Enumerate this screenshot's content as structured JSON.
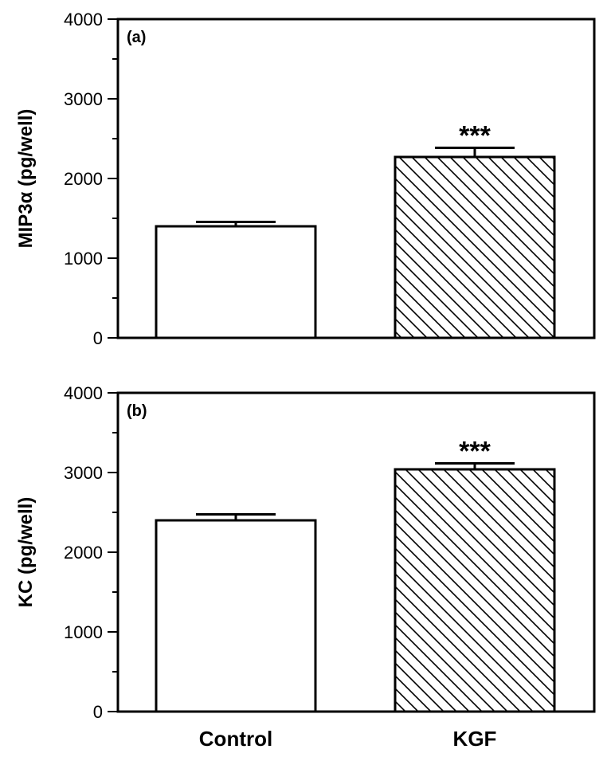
{
  "chart_data": [
    {
      "type": "bar",
      "panel_label": "(a)",
      "ylabel": "MIP3α (pg/well)",
      "categories": [
        "Control",
        "KGF"
      ],
      "values": [
        1400,
        2270
      ],
      "errors": [
        55,
        115
      ],
      "significance": [
        "",
        "***"
      ],
      "patterns": [
        "none",
        "diagonal-hatch"
      ],
      "ylim": [
        0,
        4000
      ],
      "yticks": [
        0,
        1000,
        2000,
        3000,
        4000
      ],
      "minor_step": 500,
      "grid": false
    },
    {
      "type": "bar",
      "panel_label": "(b)",
      "ylabel": "KC (pg/well)",
      "categories": [
        "Control",
        "KGF"
      ],
      "values": [
        2400,
        3040
      ],
      "errors": [
        75,
        75
      ],
      "significance": [
        "",
        "***"
      ],
      "patterns": [
        "none",
        "diagonal-hatch"
      ],
      "ylim": [
        0,
        4000
      ],
      "yticks": [
        0,
        1000,
        2000,
        3000,
        4000
      ],
      "minor_step": 500,
      "grid": false
    }
  ],
  "x_axis": {
    "labels": [
      "Control",
      "KGF"
    ]
  }
}
